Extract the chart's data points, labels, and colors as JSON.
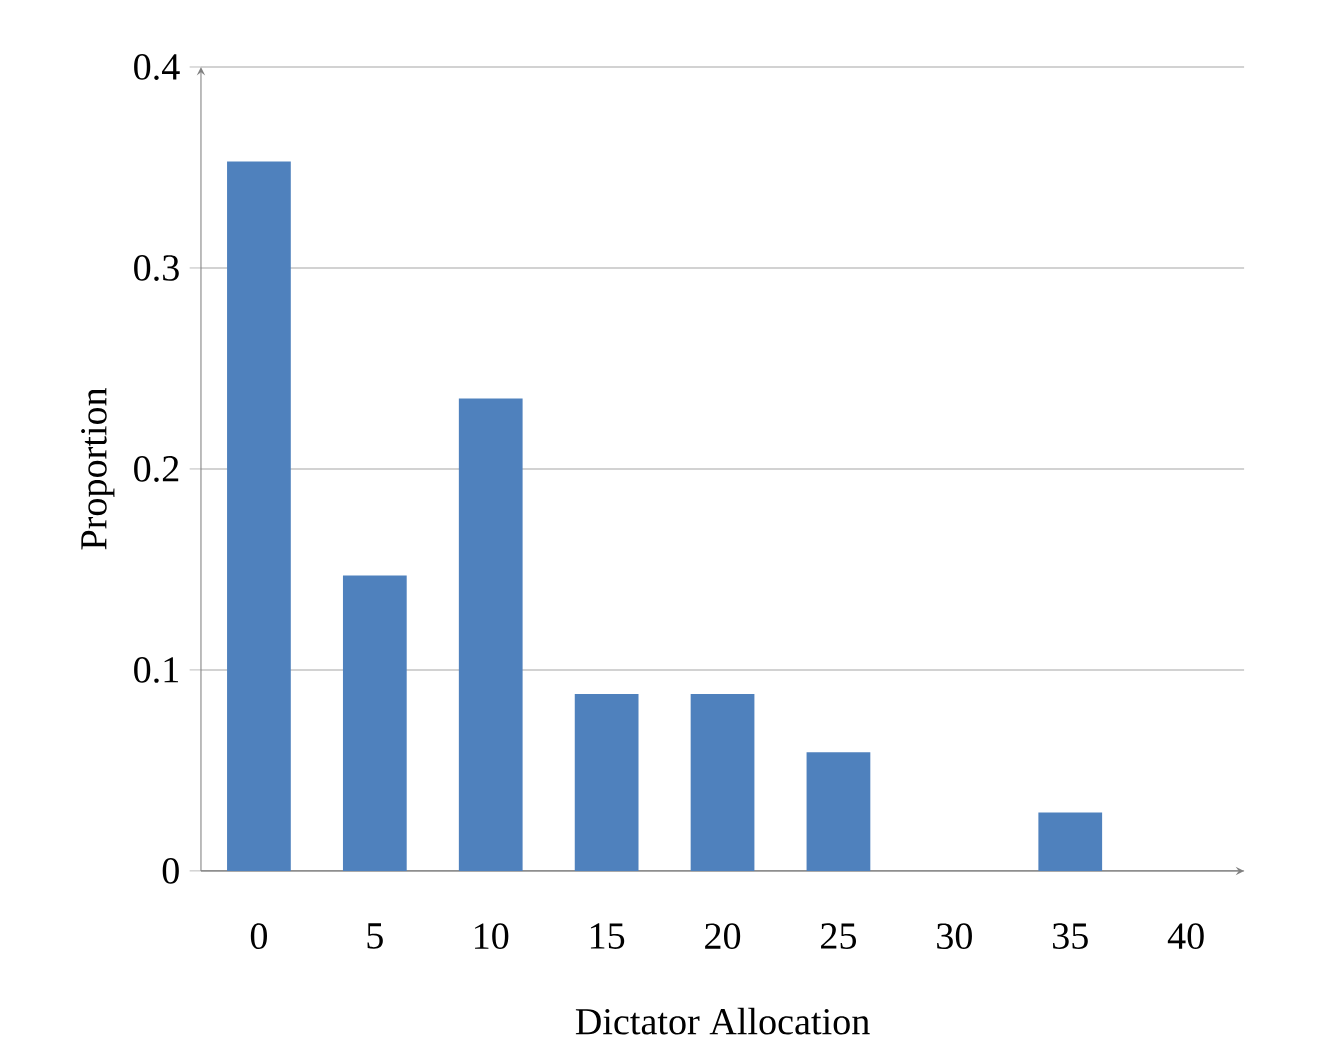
{
  "chart_data": {
    "type": "bar",
    "xlabel": "Dictator Allocation",
    "ylabel": "Proportion",
    "categories": [
      "0",
      "5",
      "10",
      "15",
      "20",
      "25",
      "30",
      "35",
      "40"
    ],
    "values": [
      0.353,
      0.147,
      0.235,
      0.088,
      0.088,
      0.059,
      0,
      0.029,
      0
    ],
    "color": "#4f81bd",
    "ylim": [
      0,
      0.4
    ],
    "yticks": [
      {
        "value": 0,
        "label": "0"
      },
      0.1,
      0.2,
      0.3,
      0.4
    ],
    "grid": "y"
  }
}
